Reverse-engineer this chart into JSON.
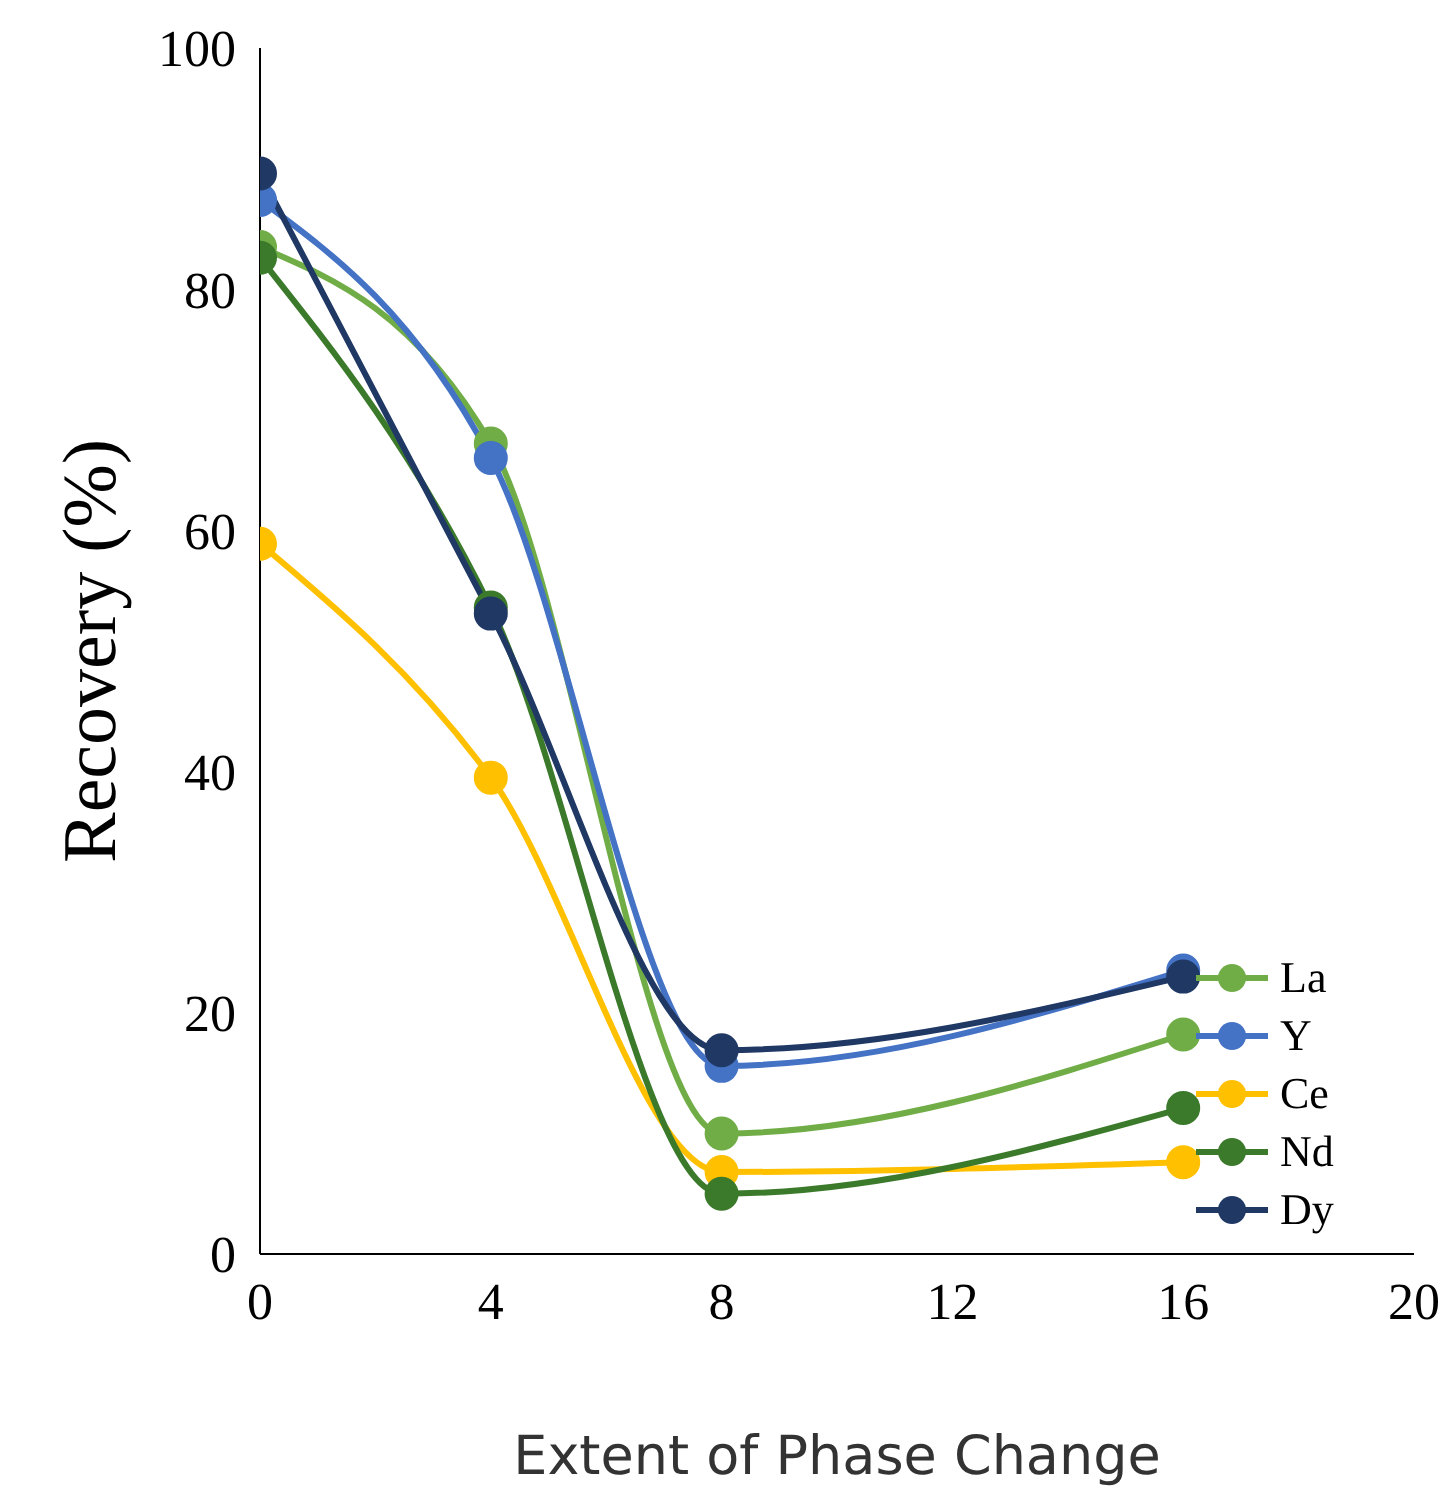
{
  "chart_data": {
    "type": "line",
    "xlabel": "Extent of Phase Change",
    "ylabel": "Recovery (%)",
    "x": [
      0,
      4,
      8,
      16
    ],
    "series": [
      {
        "name": "La",
        "color": "#70ad47",
        "values": [
          83.5,
          67.2,
          10,
          18.2
        ]
      },
      {
        "name": "Y",
        "color": "#4472c4",
        "values": [
          87.4,
          66,
          15.6,
          23.5
        ]
      },
      {
        "name": "Ce",
        "color": "#ffc000",
        "values": [
          58.9,
          39.5,
          6.8,
          7.6
        ]
      },
      {
        "name": "Nd",
        "color": "#3b7a2a",
        "values": [
          82.6,
          53.6,
          5,
          12.1
        ]
      },
      {
        "name": "Dy",
        "color": "#203864",
        "values": [
          89.6,
          53.1,
          16.9,
          23
        ]
      }
    ],
    "xlim": [
      0,
      20
    ],
    "xticks": [
      0,
      4,
      8,
      12,
      16,
      20
    ],
    "ylim": [
      0,
      100
    ],
    "yticks": [
      0,
      20,
      40,
      60,
      80,
      100
    ],
    "grid": false,
    "legend": "bottom right",
    "marker": "circle",
    "line_style": "solid"
  }
}
